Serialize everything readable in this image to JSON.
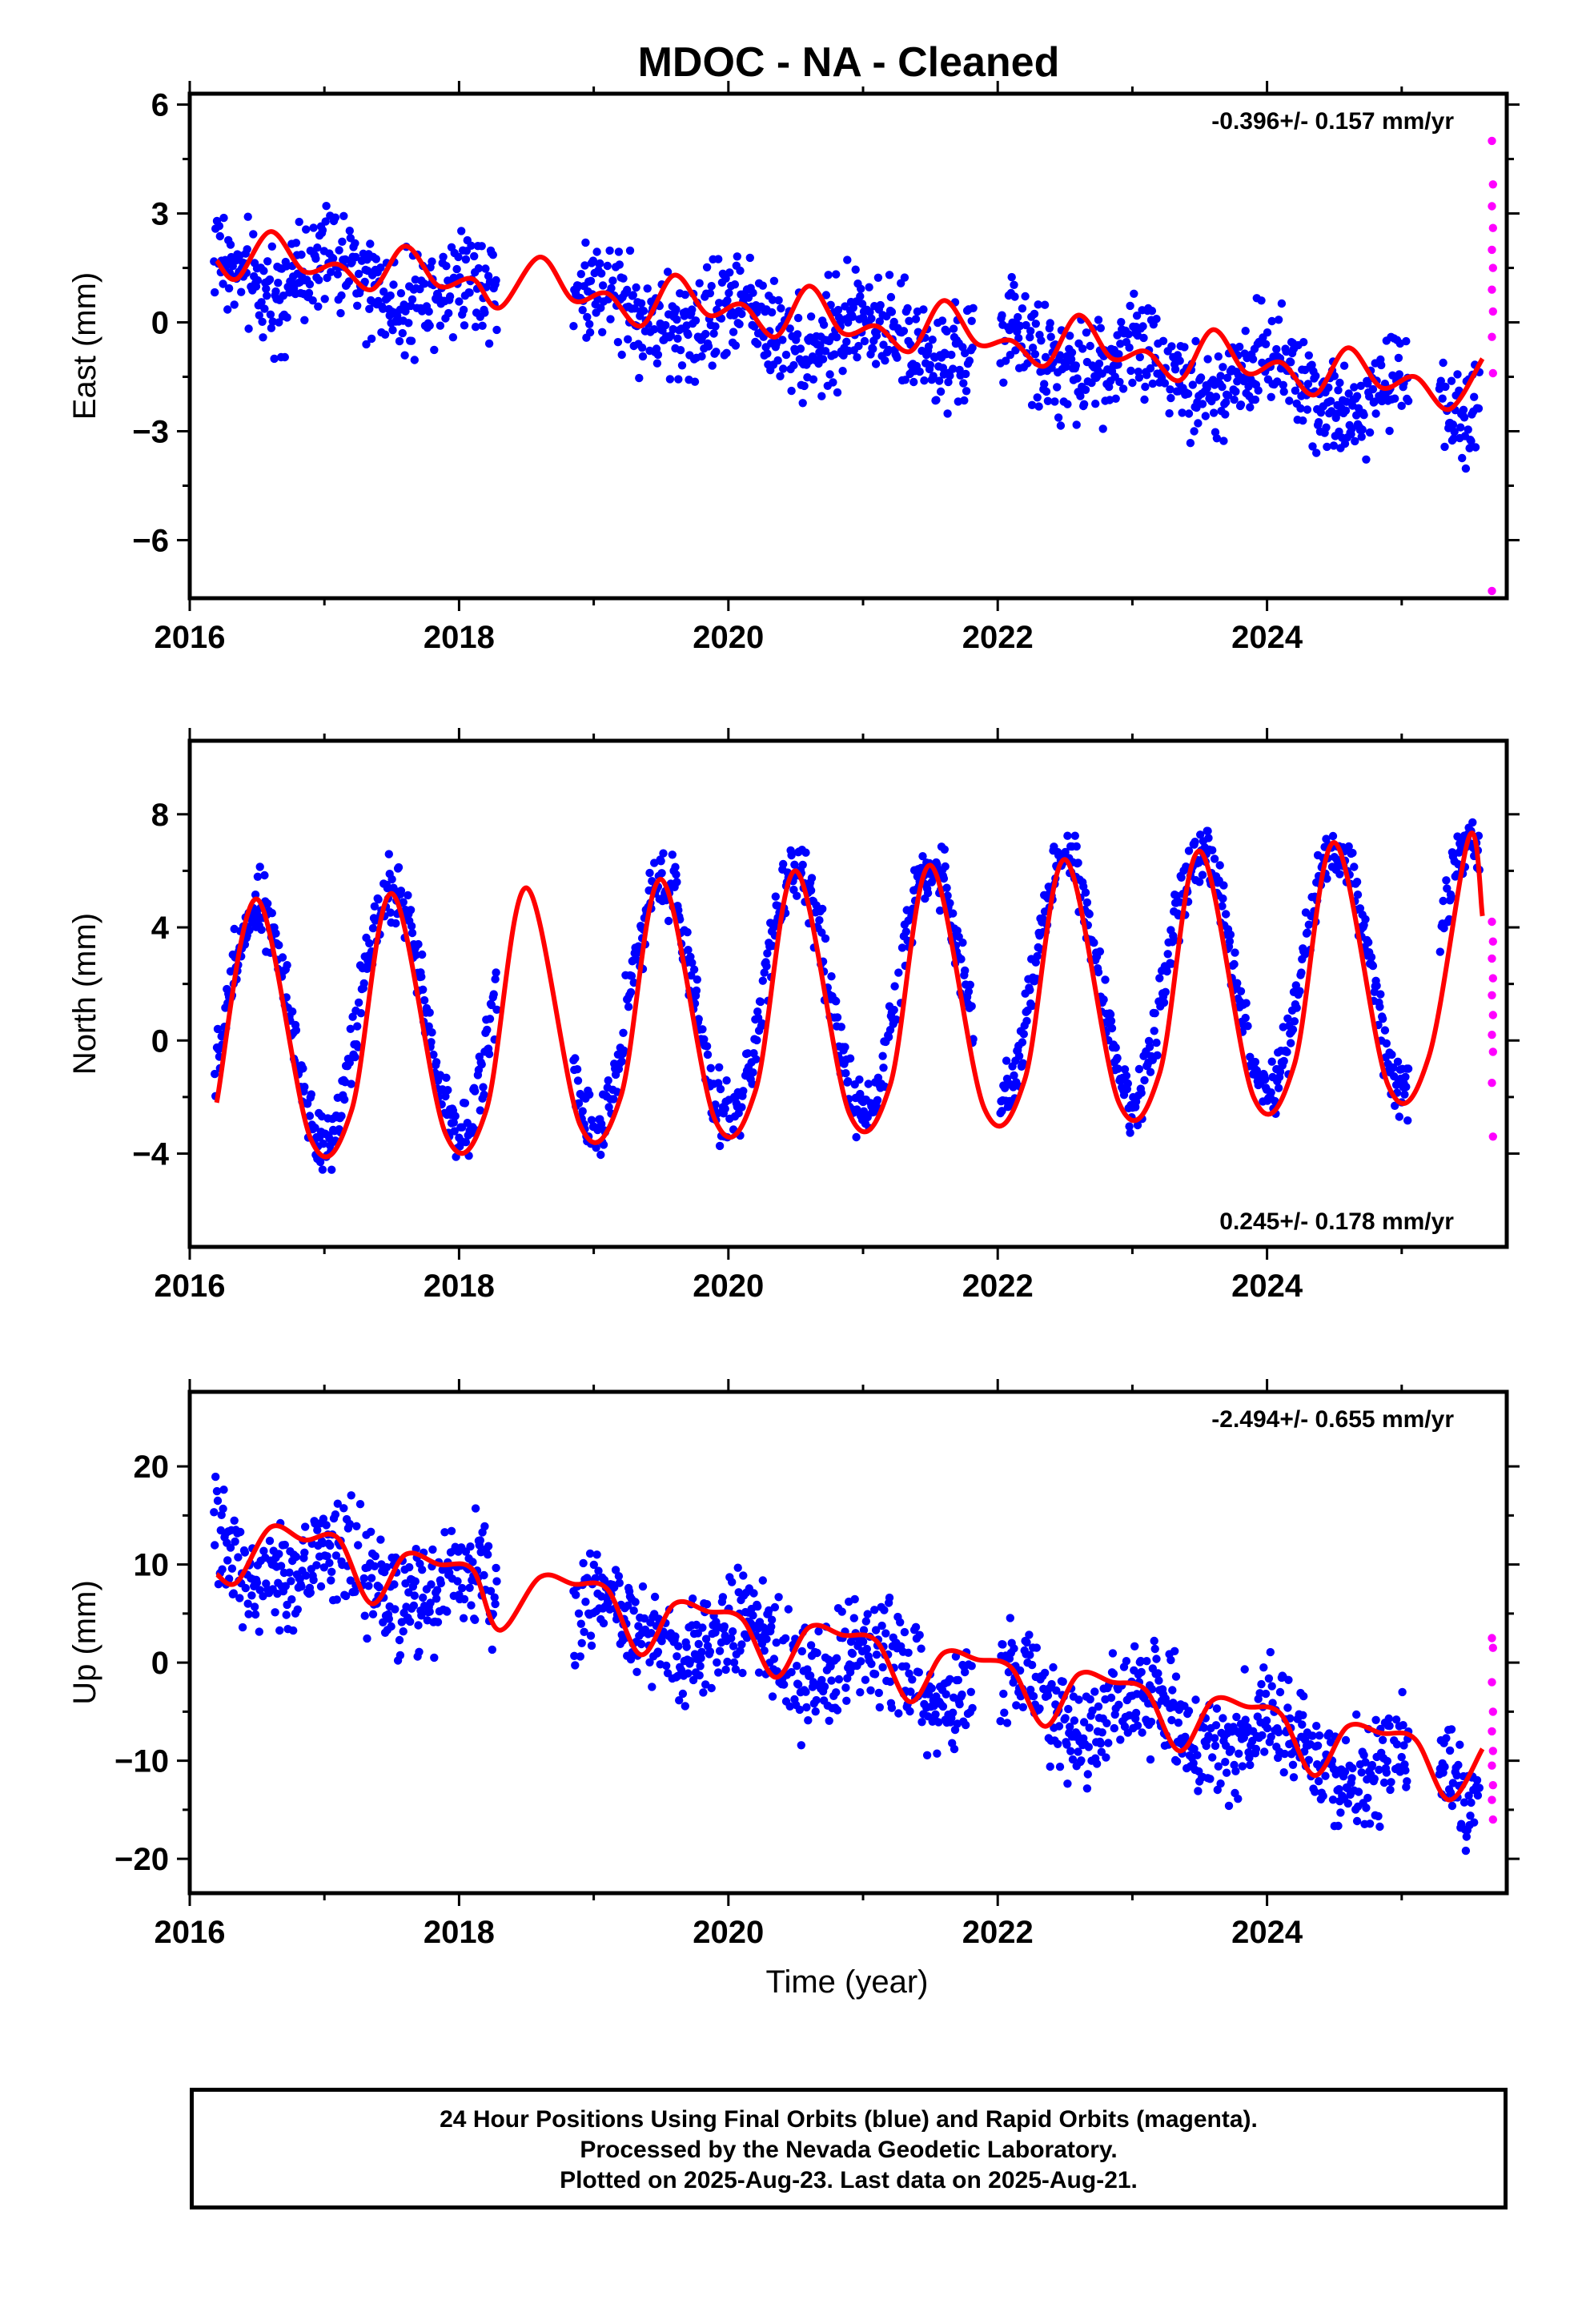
{
  "figure": {
    "title": "MDOC  - NA - Cleaned",
    "xlabel": "Time (year)",
    "colors": {
      "final": "#0000ff",
      "rapid": "#ff00ff",
      "model": "#ff0000",
      "axis": "#000000"
    }
  },
  "footer": {
    "line1": "24 Hour Positions Using Final Orbits (blue) and Rapid Orbits (magenta).",
    "line2": "Processed by the Nevada Geodetic Laboratory.",
    "line3": "Plotted on 2025-Aug-23. Last data on 2025-Aug-21."
  },
  "chart_data": [
    {
      "type": "scatter",
      "component": "East",
      "ylabel": "East (mm)",
      "rate_label": "-0.396+/- 0.157 mm/yr",
      "rate_position": "top-right",
      "xlim": [
        2016.0,
        2025.78
      ],
      "ylim": [
        -7.6,
        6.3
      ],
      "xticks": [
        2016,
        2018,
        2020,
        2022,
        2024
      ],
      "yticks": [
        -6,
        -3,
        0,
        3,
        6
      ],
      "yticklabels": [
        "−6",
        "−3",
        "0",
        "3",
        "6"
      ],
      "trend": {
        "rate": -0.396,
        "intercept": 1.55,
        "ref": 2016.2
      },
      "seasonal": {
        "amp": 0.55,
        "phase": 1.2
      },
      "noise": 1.05,
      "data_segments": [
        [
          2016.18,
          2018.28
        ],
        [
          2018.85,
          2021.82
        ],
        [
          2022.02,
          2025.05
        ],
        [
          2025.28,
          2025.58
        ]
      ],
      "model_curve": [
        [
          2016.2,
          1.7
        ],
        [
          2016.35,
          1.2
        ],
        [
          2016.6,
          2.5
        ],
        [
          2016.85,
          1.4
        ],
        [
          2017.1,
          1.6
        ],
        [
          2017.35,
          0.9
        ],
        [
          2017.6,
          2.1
        ],
        [
          2017.85,
          1.0
        ],
        [
          2018.1,
          1.2
        ],
        [
          2018.3,
          0.4
        ],
        [
          2018.6,
          1.8
        ],
        [
          2018.85,
          0.6
        ],
        [
          2019.1,
          0.8
        ],
        [
          2019.35,
          -0.1
        ],
        [
          2019.6,
          1.3
        ],
        [
          2019.85,
          0.2
        ],
        [
          2020.1,
          0.5
        ],
        [
          2020.35,
          -0.4
        ],
        [
          2020.6,
          1.0
        ],
        [
          2020.85,
          -0.3
        ],
        [
          2021.1,
          -0.1
        ],
        [
          2021.35,
          -0.8
        ],
        [
          2021.6,
          0.6
        ],
        [
          2021.85,
          -0.6
        ],
        [
          2022.1,
          -0.5
        ],
        [
          2022.35,
          -1.2
        ],
        [
          2022.6,
          0.2
        ],
        [
          2022.85,
          -1.0
        ],
        [
          2023.1,
          -0.8
        ],
        [
          2023.35,
          -1.6
        ],
        [
          2023.6,
          -0.2
        ],
        [
          2023.85,
          -1.4
        ],
        [
          2024.1,
          -1.1
        ],
        [
          2024.35,
          -2.0
        ],
        [
          2024.6,
          -0.7
        ],
        [
          2024.85,
          -1.8
        ],
        [
          2025.1,
          -1.5
        ],
        [
          2025.35,
          -2.4
        ],
        [
          2025.6,
          -1.0
        ]
      ],
      "rapid_points": [
        5.0,
        3.8,
        3.2,
        2.6,
        2.0,
        1.5,
        0.9,
        0.3,
        -0.4,
        -1.4,
        -7.4
      ]
    },
    {
      "type": "scatter",
      "component": "North",
      "ylabel": "North (mm)",
      "rate_label": "0.245+/- 0.178 mm/yr",
      "rate_position": "bottom-right",
      "xlim": [
        2016.0,
        2025.78
      ],
      "ylim": [
        -7.3,
        10.6
      ],
      "xticks": [
        2016,
        2018,
        2020,
        2022,
        2024
      ],
      "yticks": [
        -4,
        0,
        4,
        8
      ],
      "yticklabels": [
        "−4",
        "0",
        "4",
        "8"
      ],
      "trend": {
        "rate": 0.245,
        "intercept": 0.6,
        "ref": 2016.2
      },
      "seasonal": {
        "amp": 4.3,
        "phase": -1.6
      },
      "noise": 0.85,
      "data_segments": [
        [
          2016.18,
          2018.28
        ],
        [
          2018.85,
          2021.82
        ],
        [
          2022.02,
          2025.05
        ],
        [
          2025.28,
          2025.58
        ]
      ],
      "model_curve": [
        [
          2016.2,
          -2.2
        ],
        [
          2016.5,
          5.0
        ],
        [
          2016.9,
          -3.5
        ],
        [
          2017.2,
          -2.5
        ],
        [
          2017.5,
          5.2
        ],
        [
          2017.9,
          -3.3
        ],
        [
          2018.2,
          -2.5
        ],
        [
          2018.5,
          5.4
        ],
        [
          2018.9,
          -3.0
        ],
        [
          2019.2,
          -2.0
        ],
        [
          2019.5,
          5.7
        ],
        [
          2019.9,
          -2.8
        ],
        [
          2020.2,
          -1.8
        ],
        [
          2020.5,
          6.0
        ],
        [
          2020.9,
          -2.6
        ],
        [
          2021.2,
          -1.6
        ],
        [
          2021.5,
          6.2
        ],
        [
          2021.9,
          -2.4
        ],
        [
          2022.2,
          -1.4
        ],
        [
          2022.5,
          6.4
        ],
        [
          2022.9,
          -2.2
        ],
        [
          2023.2,
          -1.2
        ],
        [
          2023.5,
          6.7
        ],
        [
          2023.9,
          -2.0
        ],
        [
          2024.2,
          -0.9
        ],
        [
          2024.5,
          7.0
        ],
        [
          2024.9,
          -1.6
        ],
        [
          2025.2,
          -0.6
        ],
        [
          2025.5,
          7.2
        ],
        [
          2025.6,
          4.4
        ]
      ],
      "rapid_points": [
        4.2,
        3.5,
        2.9,
        2.2,
        1.6,
        0.9,
        0.2,
        -0.4,
        -1.5,
        -3.4
      ]
    },
    {
      "type": "scatter",
      "component": "Up",
      "ylabel": "Up (mm)",
      "rate_label": "-2.494+/- 0.655 mm/yr",
      "rate_position": "top-right",
      "xlim": [
        2016.0,
        2025.78
      ],
      "ylim": [
        -23.5,
        27.6
      ],
      "xticks": [
        2016,
        2018,
        2020,
        2022,
        2024
      ],
      "yticks": [
        -20,
        -10,
        0,
        10,
        20
      ],
      "yticklabels": [
        "−20",
        "−10",
        "0",
        "10",
        "20"
      ],
      "trend": {
        "rate": -2.494,
        "intercept": 11.5,
        "ref": 2016.2
      },
      "seasonal": {
        "amp": 2.5,
        "phase": 1.0
      },
      "noise": 3.9,
      "data_segments": [
        [
          2016.18,
          2018.28
        ],
        [
          2018.85,
          2021.82
        ],
        [
          2022.02,
          2025.05
        ],
        [
          2025.28,
          2025.58
        ]
      ],
      "model_curve": [
        [
          2016.2,
          9.0
        ],
        [
          2016.35,
          8.2
        ],
        [
          2016.6,
          13.8
        ],
        [
          2016.85,
          12.5
        ],
        [
          2017.1,
          12.7
        ],
        [
          2017.35,
          6.0
        ],
        [
          2017.6,
          11.0
        ],
        [
          2017.85,
          10.0
        ],
        [
          2018.1,
          9.5
        ],
        [
          2018.3,
          3.3
        ],
        [
          2018.6,
          8.7
        ],
        [
          2018.85,
          8.0
        ],
        [
          2019.1,
          7.5
        ],
        [
          2019.35,
          0.8
        ],
        [
          2019.6,
          6.0
        ],
        [
          2019.85,
          5.2
        ],
        [
          2020.1,
          4.5
        ],
        [
          2020.35,
          -1.5
        ],
        [
          2020.6,
          3.6
        ],
        [
          2020.85,
          2.8
        ],
        [
          2021.1,
          2.2
        ],
        [
          2021.35,
          -4.0
        ],
        [
          2021.6,
          1.0
        ],
        [
          2021.85,
          0.3
        ],
        [
          2022.1,
          -0.5
        ],
        [
          2022.35,
          -6.5
        ],
        [
          2022.6,
          -1.2
        ],
        [
          2022.85,
          -2.0
        ],
        [
          2023.1,
          -2.8
        ],
        [
          2023.35,
          -9.0
        ],
        [
          2023.6,
          -3.8
        ],
        [
          2023.85,
          -4.5
        ],
        [
          2024.1,
          -5.2
        ],
        [
          2024.35,
          -11.5
        ],
        [
          2024.6,
          -6.5
        ],
        [
          2024.85,
          -7.2
        ],
        [
          2025.1,
          -7.8
        ],
        [
          2025.35,
          -14.0
        ],
        [
          2025.6,
          -8.8
        ]
      ],
      "rapid_points": [
        2.5,
        1.5,
        -2.0,
        -5.0,
        -7.0,
        -9.0,
        -10.5,
        -12.5,
        -14.0,
        -16.0
      ]
    }
  ]
}
